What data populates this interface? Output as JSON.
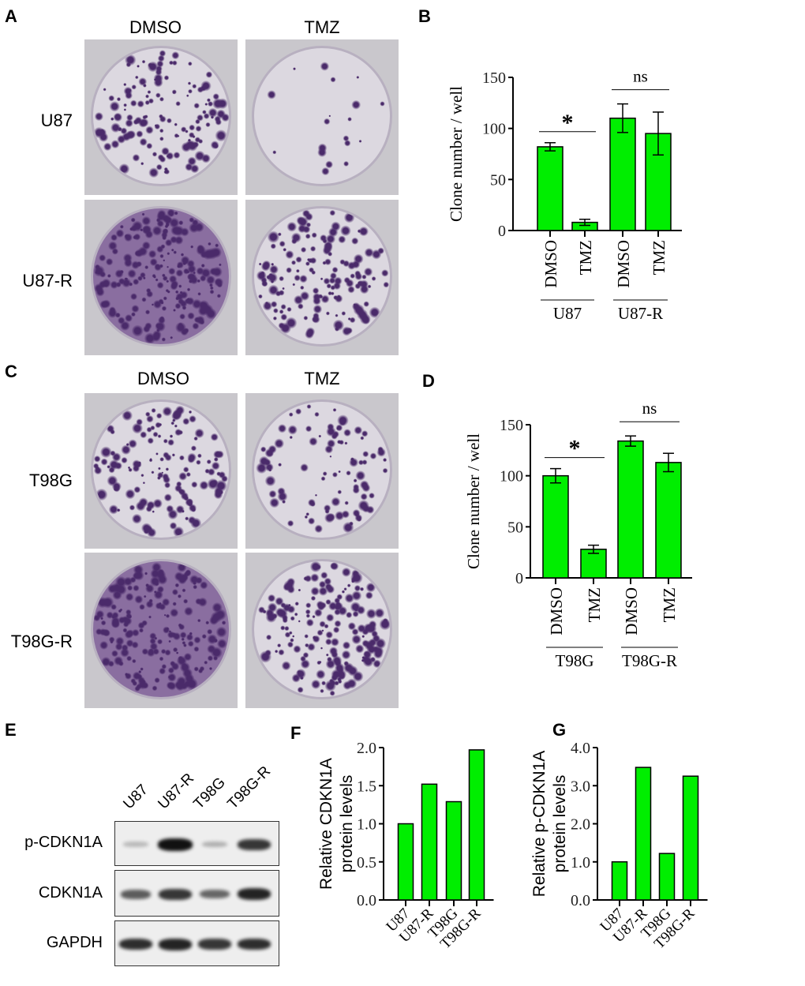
{
  "panels": {
    "a": "A",
    "b": "B",
    "c": "C",
    "d": "D",
    "e": "E",
    "f": "F",
    "g": "G"
  },
  "colors": {
    "bar": "#00ee00",
    "stain": "#4a2a6a"
  },
  "plates": {
    "a": {
      "columns": [
        "DMSO",
        "TMZ"
      ],
      "rows": [
        "U87",
        "U87-R"
      ],
      "density": [
        [
          0.55,
          0.05
        ],
        [
          0.85,
          0.6
        ]
      ]
    },
    "c": {
      "columns": [
        "DMSO",
        "TMZ"
      ],
      "rows": [
        "T98G",
        "T98G-R"
      ],
      "density": [
        [
          0.55,
          0.35
        ],
        [
          0.8,
          0.7
        ]
      ]
    }
  },
  "blot": {
    "lanes": [
      "U87",
      "U87-R",
      "T98G",
      "T98G-R"
    ],
    "rows": [
      {
        "label": "p-CDKN1A",
        "intensity": [
          0.1,
          1.0,
          0.15,
          0.8
        ]
      },
      {
        "label": "CDKN1A",
        "intensity": [
          0.6,
          0.8,
          0.55,
          0.9
        ]
      },
      {
        "label": "GAPDH",
        "intensity": [
          0.85,
          0.9,
          0.8,
          0.85
        ]
      }
    ]
  },
  "chart_data": [
    {
      "id": "b",
      "type": "bar",
      "ylabel": "Clone number / well",
      "ylim": [
        0,
        150
      ],
      "yticks": [
        "0",
        "50",
        "100",
        "150"
      ],
      "categories": [
        "DMSO",
        "TMZ",
        "DMSO",
        "TMZ"
      ],
      "groups": [
        "U87",
        "U87-R"
      ],
      "values": [
        82,
        8,
        110,
        95
      ],
      "errors": [
        4,
        3,
        14,
        21
      ],
      "annotations": [
        {
          "text": "*",
          "between": [
            0,
            1
          ]
        },
        {
          "text": "ns",
          "between": [
            2,
            3
          ]
        }
      ]
    },
    {
      "id": "d",
      "type": "bar",
      "ylabel": "Clone number / well",
      "ylim": [
        0,
        150
      ],
      "yticks": [
        "0",
        "50",
        "100",
        "150"
      ],
      "categories": [
        "DMSO",
        "TMZ",
        "DMSO",
        "TMZ"
      ],
      "groups": [
        "T98G",
        "T98G-R"
      ],
      "values": [
        100,
        28,
        134,
        113
      ],
      "errors": [
        7,
        4,
        5,
        9
      ],
      "annotations": [
        {
          "text": "*",
          "between": [
            0,
            1
          ]
        },
        {
          "text": "ns",
          "between": [
            2,
            3
          ]
        }
      ]
    },
    {
      "id": "f",
      "type": "bar",
      "ylabel": [
        "Relative CDKN1A",
        "protein levels"
      ],
      "ylim": [
        0,
        2
      ],
      "yticks": [
        "0.0",
        "0.5",
        "1.0",
        "1.5",
        "2.0"
      ],
      "categories": [
        "U87",
        "U87-R",
        "T98G",
        "T98G-R"
      ],
      "values": [
        1.0,
        1.52,
        1.29,
        1.97
      ]
    },
    {
      "id": "g",
      "type": "bar",
      "ylabel": [
        "Relative p-CDKN1A",
        "protein levels"
      ],
      "ylim": [
        0,
        4
      ],
      "yticks": [
        "0.0",
        "1.0",
        "2.0",
        "3.0",
        "4.0"
      ],
      "categories": [
        "U87",
        "U87-R",
        "T98G",
        "T98G-R"
      ],
      "values": [
        1.0,
        3.48,
        1.22,
        3.25
      ]
    }
  ]
}
